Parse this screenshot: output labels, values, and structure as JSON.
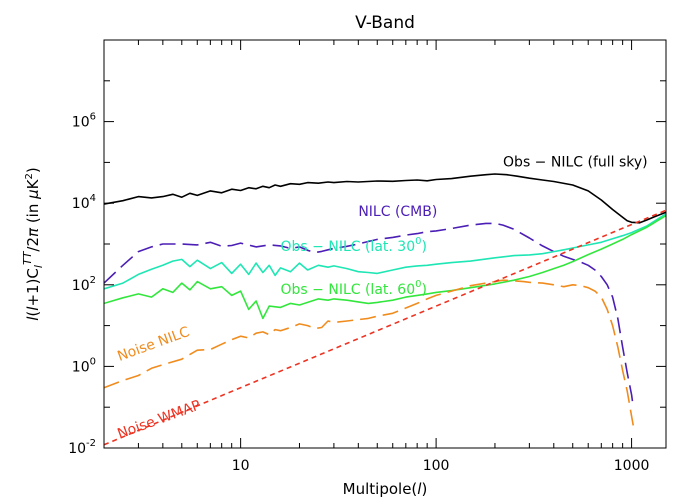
{
  "chart_data": {
    "type": "line",
    "title": "V-Band",
    "xlabel": "Multipole(l)",
    "ylabel": "l(l+1)C_l^TT/2π (in μK²)",
    "xscale": "log",
    "yscale": "log",
    "xlim": [
      2,
      1500
    ],
    "ylim": [
      0.01,
      100000000
    ],
    "grid": false,
    "x_ticks": [
      {
        "value": 10,
        "label": "10"
      },
      {
        "value": 100,
        "label": "100"
      },
      {
        "value": 1000,
        "label": "1000"
      }
    ],
    "y_ticks": [
      {
        "value": 0.01,
        "base": "10",
        "exp": "-2"
      },
      {
        "value": 1,
        "base": "10",
        "exp": "0"
      },
      {
        "value": 100,
        "base": "10",
        "exp": "2"
      },
      {
        "value": 10000,
        "base": "10",
        "exp": "4"
      },
      {
        "value": 1000000,
        "base": "10",
        "exp": "6"
      }
    ],
    "series": [
      {
        "key": "obs-nilc-full",
        "annotation": "Obs − NILC (full sky)",
        "label_at": [
          220,
          80000
        ],
        "color": "#000000",
        "dash": "solid",
        "points": [
          [
            2,
            9500
          ],
          [
            2.5,
            11500
          ],
          [
            3,
            14500
          ],
          [
            3.5,
            13500
          ],
          [
            4,
            14500
          ],
          [
            4.5,
            16500
          ],
          [
            5,
            14000
          ],
          [
            5.5,
            17500
          ],
          [
            6,
            15500
          ],
          [
            7,
            20000
          ],
          [
            8,
            18000
          ],
          [
            9,
            22000
          ],
          [
            10,
            20500
          ],
          [
            11,
            24000
          ],
          [
            12,
            22500
          ],
          [
            13,
            26000
          ],
          [
            14,
            24000
          ],
          [
            15,
            28000
          ],
          [
            16,
            26000
          ],
          [
            18,
            30000
          ],
          [
            20,
            29000
          ],
          [
            22,
            32000
          ],
          [
            25,
            31000
          ],
          [
            28,
            33000
          ],
          [
            30,
            32000
          ],
          [
            35,
            34000
          ],
          [
            40,
            33000
          ],
          [
            50,
            35000
          ],
          [
            60,
            34500
          ],
          [
            70,
            36000
          ],
          [
            80,
            37000
          ],
          [
            90,
            35500
          ],
          [
            100,
            38000
          ],
          [
            120,
            40000
          ],
          [
            150,
            46000
          ],
          [
            180,
            50000
          ],
          [
            200,
            52000
          ],
          [
            230,
            50000
          ],
          [
            260,
            46000
          ],
          [
            300,
            41000
          ],
          [
            350,
            37000
          ],
          [
            400,
            34000
          ],
          [
            500,
            28000
          ],
          [
            600,
            20000
          ],
          [
            700,
            12000
          ],
          [
            800,
            7000
          ],
          [
            900,
            4500
          ],
          [
            950,
            3700
          ],
          [
            1000,
            3400
          ],
          [
            1100,
            3300
          ],
          [
            1200,
            3900
          ],
          [
            1300,
            4600
          ],
          [
            1500,
            6000
          ]
        ]
      },
      {
        "key": "nilc-cmb",
        "annotation": "NILC (CMB)",
        "label_at": [
          40,
          4800
        ],
        "color": "#4b1eb5",
        "dash": "long",
        "points": [
          [
            2,
            110
          ],
          [
            2.5,
            300
          ],
          [
            3,
            650
          ],
          [
            3.5,
            850
          ],
          [
            4,
            1000
          ],
          [
            5,
            1000
          ],
          [
            6,
            950
          ],
          [
            7,
            1100
          ],
          [
            8,
            880
          ],
          [
            9,
            920
          ],
          [
            10,
            1050
          ],
          [
            12,
            850
          ],
          [
            14,
            950
          ],
          [
            16,
            900
          ],
          [
            18,
            780
          ],
          [
            20,
            850
          ],
          [
            22,
            700
          ],
          [
            24,
            620
          ],
          [
            26,
            660
          ],
          [
            28,
            720
          ],
          [
            30,
            780
          ],
          [
            35,
            880
          ],
          [
            40,
            1000
          ],
          [
            45,
            1150
          ],
          [
            50,
            1300
          ],
          [
            60,
            1450
          ],
          [
            70,
            1650
          ],
          [
            80,
            1800
          ],
          [
            90,
            2000
          ],
          [
            100,
            2100
          ],
          [
            120,
            2400
          ],
          [
            150,
            2900
          ],
          [
            180,
            3200
          ],
          [
            200,
            3200
          ],
          [
            220,
            2900
          ],
          [
            250,
            2300
          ],
          [
            300,
            1400
          ],
          [
            350,
            900
          ],
          [
            400,
            650
          ],
          [
            450,
            500
          ],
          [
            500,
            420
          ],
          [
            550,
            360
          ],
          [
            600,
            300
          ],
          [
            650,
            230
          ],
          [
            700,
            160
          ],
          [
            750,
            100
          ],
          [
            800,
            50
          ],
          [
            850,
            15
          ],
          [
            900,
            3
          ],
          [
            950,
            0.7
          ],
          [
            1000,
            0.2
          ],
          [
            1020,
            0.1
          ]
        ]
      },
      {
        "key": "obs-nilc-lat30",
        "annotation": "Obs − NILC (lat. 30°)",
        "label_at": [
          16,
          670
        ],
        "color": "#1ee6b4",
        "dash": "solid",
        "points": [
          [
            2,
            80
          ],
          [
            2.5,
            110
          ],
          [
            3,
            180
          ],
          [
            3.5,
            240
          ],
          [
            4,
            300
          ],
          [
            4.5,
            380
          ],
          [
            5,
            420
          ],
          [
            5.5,
            280
          ],
          [
            6,
            400
          ],
          [
            7,
            250
          ],
          [
            8,
            350
          ],
          [
            9,
            190
          ],
          [
            10,
            320
          ],
          [
            11,
            180
          ],
          [
            12,
            340
          ],
          [
            13,
            200
          ],
          [
            14,
            300
          ],
          [
            15,
            170
          ],
          [
            16,
            260
          ],
          [
            18,
            210
          ],
          [
            20,
            340
          ],
          [
            22,
            230
          ],
          [
            25,
            300
          ],
          [
            28,
            270
          ],
          [
            30,
            290
          ],
          [
            35,
            250
          ],
          [
            40,
            210
          ],
          [
            45,
            200
          ],
          [
            50,
            190
          ],
          [
            60,
            230
          ],
          [
            70,
            270
          ],
          [
            80,
            290
          ],
          [
            90,
            300
          ],
          [
            100,
            320
          ],
          [
            120,
            350
          ],
          [
            150,
            380
          ],
          [
            200,
            460
          ],
          [
            250,
            520
          ],
          [
            300,
            540
          ],
          [
            350,
            580
          ],
          [
            400,
            650
          ],
          [
            450,
            720
          ],
          [
            500,
            800
          ],
          [
            600,
            950
          ],
          [
            700,
            1100
          ],
          [
            800,
            1350
          ],
          [
            900,
            1600
          ],
          [
            1000,
            1900
          ],
          [
            1200,
            2800
          ],
          [
            1500,
            5500
          ]
        ]
      },
      {
        "key": "obs-nilc-lat60",
        "annotation": "Obs − NILC (lat. 60°)",
        "label_at": [
          16,
          60
        ],
        "color": "#33e63d",
        "dash": "solid",
        "points": [
          [
            2,
            35
          ],
          [
            2.5,
            48
          ],
          [
            3,
            60
          ],
          [
            3.5,
            50
          ],
          [
            4,
            80
          ],
          [
            4.5,
            65
          ],
          [
            5,
            110
          ],
          [
            5.5,
            75
          ],
          [
            6,
            120
          ],
          [
            7,
            80
          ],
          [
            8,
            90
          ],
          [
            9,
            55
          ],
          [
            10,
            70
          ],
          [
            11,
            25
          ],
          [
            12,
            40
          ],
          [
            13,
            15
          ],
          [
            14,
            30
          ],
          [
            16,
            28
          ],
          [
            18,
            35
          ],
          [
            20,
            32
          ],
          [
            22,
            37
          ],
          [
            25,
            45
          ],
          [
            28,
            42
          ],
          [
            30,
            45
          ],
          [
            35,
            42
          ],
          [
            40,
            38
          ],
          [
            45,
            35
          ],
          [
            50,
            37
          ],
          [
            60,
            42
          ],
          [
            70,
            50
          ],
          [
            80,
            55
          ],
          [
            90,
            60
          ],
          [
            100,
            65
          ],
          [
            120,
            72
          ],
          [
            150,
            85
          ],
          [
            200,
            105
          ],
          [
            250,
            130
          ],
          [
            300,
            160
          ],
          [
            350,
            200
          ],
          [
            400,
            250
          ],
          [
            450,
            300
          ],
          [
            500,
            370
          ],
          [
            600,
            550
          ],
          [
            700,
            750
          ],
          [
            800,
            1000
          ],
          [
            900,
            1300
          ],
          [
            1000,
            1700
          ],
          [
            1200,
            2600
          ],
          [
            1500,
            5000
          ]
        ]
      },
      {
        "key": "noise-nilc",
        "annotation": "Noise NILC",
        "label_at": [
          2.4,
          1.35
        ],
        "label_rotate": -20,
        "color": "#f08c1e",
        "dash": "long",
        "points": [
          [
            2,
            0.3
          ],
          [
            2.5,
            0.45
          ],
          [
            3,
            0.6
          ],
          [
            3.5,
            0.9
          ],
          [
            4,
            1.1
          ],
          [
            5,
            1.5
          ],
          [
            6,
            2.5
          ],
          [
            7,
            2.6
          ],
          [
            8,
            3.5
          ],
          [
            9,
            4.5
          ],
          [
            10,
            5.5
          ],
          [
            11,
            5
          ],
          [
            12,
            6.5
          ],
          [
            13,
            7
          ],
          [
            14,
            6
          ],
          [
            15,
            8
          ],
          [
            16,
            7.5
          ],
          [
            18,
            9
          ],
          [
            20,
            11
          ],
          [
            22,
            10
          ],
          [
            24,
            8.5
          ],
          [
            26,
            9
          ],
          [
            28,
            13
          ],
          [
            30,
            12
          ],
          [
            35,
            13
          ],
          [
            40,
            14
          ],
          [
            45,
            15
          ],
          [
            50,
            17
          ],
          [
            60,
            20
          ],
          [
            70,
            27
          ],
          [
            80,
            35
          ],
          [
            90,
            45
          ],
          [
            100,
            55
          ],
          [
            120,
            70
          ],
          [
            150,
            95
          ],
          [
            180,
            110
          ],
          [
            200,
            120
          ],
          [
            220,
            130
          ],
          [
            250,
            125
          ],
          [
            280,
            120
          ],
          [
            300,
            115
          ],
          [
            350,
            110
          ],
          [
            400,
            100
          ],
          [
            450,
            90
          ],
          [
            500,
            100
          ],
          [
            550,
            95
          ],
          [
            600,
            85
          ],
          [
            650,
            70
          ],
          [
            700,
            50
          ],
          [
            750,
            25
          ],
          [
            800,
            10
          ],
          [
            850,
            3
          ],
          [
            900,
            0.8
          ],
          [
            950,
            0.25
          ],
          [
            1000,
            0.06
          ],
          [
            1020,
            0.035
          ]
        ]
      },
      {
        "key": "noise-wmap",
        "annotation": "Noise WMAP",
        "label_at": [
          2.4,
          0.017
        ],
        "label_rotate": -20,
        "color": "#ee3322",
        "dash": "short",
        "points": [
          [
            2,
            0.012
          ],
          [
            5,
            0.075
          ],
          [
            10,
            0.3
          ],
          [
            20,
            1.2
          ],
          [
            50,
            7.5
          ],
          [
            100,
            30
          ],
          [
            200,
            120
          ],
          [
            300,
            270
          ],
          [
            500,
            750
          ],
          [
            1000,
            3000
          ],
          [
            1500,
            6700
          ]
        ]
      }
    ]
  }
}
